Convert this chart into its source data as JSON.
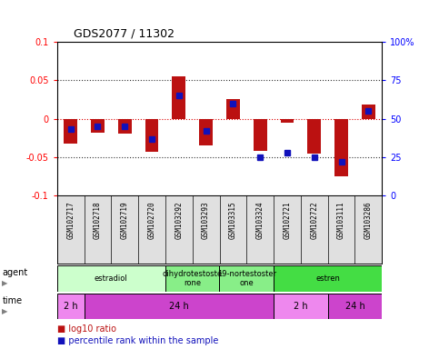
{
  "title": "GDS2077 / 11302",
  "samples": [
    "GSM102717",
    "GSM102718",
    "GSM102719",
    "GSM102720",
    "GSM103292",
    "GSM103293",
    "GSM103315",
    "GSM103324",
    "GSM102721",
    "GSM102722",
    "GSM103111",
    "GSM103286"
  ],
  "log10_ratio": [
    -0.033,
    -0.018,
    -0.02,
    -0.043,
    0.055,
    -0.035,
    0.025,
    -0.042,
    -0.005,
    -0.045,
    -0.075,
    0.018
  ],
  "percentile_rank": [
    43,
    45,
    45,
    37,
    65,
    42,
    60,
    25,
    28,
    25,
    22,
    55
  ],
  "ylim_left": [
    -0.1,
    0.1
  ],
  "ylim_right": [
    0,
    100
  ],
  "yticks_left": [
    -0.1,
    -0.05,
    0.0,
    0.05,
    0.1
  ],
  "yticks_right": [
    0,
    25,
    50,
    75,
    100
  ],
  "ytick_labels_left": [
    "-0.1",
    "-0.05",
    "0",
    "0.05",
    "0.1"
  ],
  "ytick_labels_right": [
    "0",
    "25",
    "50",
    "75",
    "100%"
  ],
  "bar_color": "#bb1111",
  "dot_color": "#1111bb",
  "zero_line_color": "#dd0000",
  "dotted_line_color": "#333333",
  "plot_bg_color": "#ffffff",
  "agent_groups": [
    {
      "label": "estradiol",
      "start": 0,
      "end": 4,
      "color": "#ccffcc"
    },
    {
      "label": "dihydrotestoste\nrone",
      "start": 4,
      "end": 6,
      "color": "#88ee88"
    },
    {
      "label": "19-nortestoster\none",
      "start": 6,
      "end": 8,
      "color": "#88ee88"
    },
    {
      "label": "estren",
      "start": 8,
      "end": 12,
      "color": "#44dd44"
    }
  ],
  "time_groups": [
    {
      "label": "2 h",
      "start": 0,
      "end": 1,
      "color": "#ee88ee"
    },
    {
      "label": "24 h",
      "start": 1,
      "end": 8,
      "color": "#cc44cc"
    },
    {
      "label": "2 h",
      "start": 8,
      "end": 10,
      "color": "#ee88ee"
    },
    {
      "label": "24 h",
      "start": 10,
      "end": 12,
      "color": "#cc44cc"
    }
  ],
  "bar_width": 0.5,
  "dot_marker": "s",
  "dot_size": 4
}
